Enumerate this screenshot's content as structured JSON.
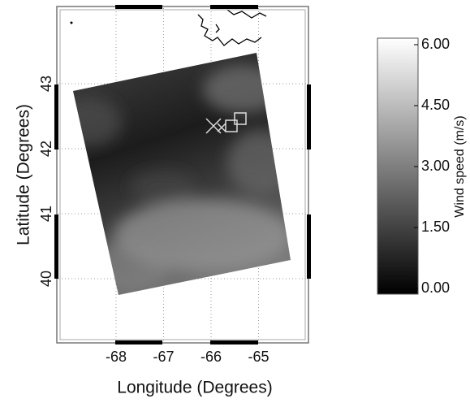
{
  "x_axis": {
    "label": "Longitude (Degrees)",
    "ticks": [
      "-68",
      "-67",
      "-66",
      "-65"
    ]
  },
  "y_axis": {
    "label": "Latitude (Degrees)",
    "ticks": [
      "40",
      "41",
      "42",
      "43"
    ]
  },
  "colorbar": {
    "label": "Wind speed (m/s)",
    "ticks": [
      "0.00",
      "1.50",
      "3.00",
      "4.50",
      "6.00"
    ]
  }
}
